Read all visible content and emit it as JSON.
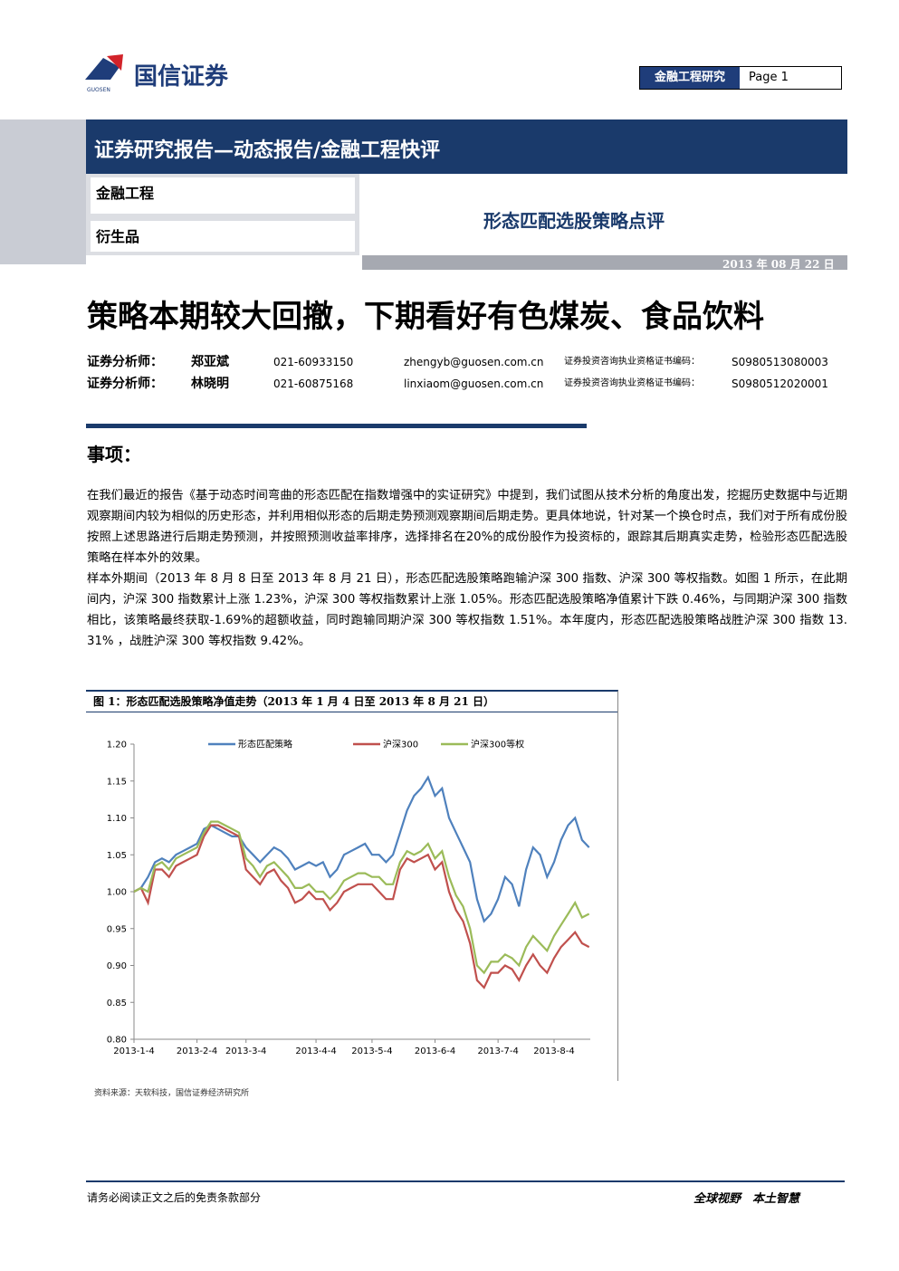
{
  "header": {
    "logo": "国信证券",
    "logo_en": "GUOSEN",
    "tag": "金融工程研究",
    "page_label": "Page",
    "page_number": "1"
  },
  "banner": {
    "title": "证券研究报告—动态报告/金融工程快评",
    "sector1": "金融工程",
    "sector2": "衍生品",
    "subtitle": "形态匹配选股策略点评",
    "date": "2013 年 08 月 22 日"
  },
  "headline": "策略本期较大回撤，下期看好有色煤炭、食品饮料",
  "analysts": [
    {
      "role": "证券分析师：",
      "name": "郑亚斌",
      "phone": "021-60933150",
      "email": "zhengyb@guosen.com.cn",
      "cert_label": "证券投资咨询执业资格证书编码：",
      "cert": "S0980513080003"
    },
    {
      "role": "证券分析师：",
      "name": "林晓明",
      "phone": "021-60875168",
      "email": "linxiaom@guosen.com.cn",
      "cert_label": "证券投资咨询执业资格证书编码：",
      "cert": "S0980512020001"
    }
  ],
  "section": "事项：",
  "paragraphs": [
    "在我们最近的报告《基于动态时间弯曲的形态匹配在指数增强中的实证研究》中提到，我们试图从技术分析的角度出发，挖掘历史数据中与近期观察期间内较为相似的历史形态，并利用相似形态的后期走势预测观察期间后期走势。更具体地说，针对某一个换仓时点，我们对于所有成份股按照上述思路进行后期走势预测，并按照预测收益率排序，选择排名在20%的成份股作为投资标的，跟踪其后期真实走势，检验形态匹配选股策略在样本外的效果。",
    "样本外期间（2013 年 8 月 8 日至 2013 年 8 月 21 日），形态匹配选股策略跑输沪深 300 指数、沪深 300 等权指数。如图 1 所示，在此期间内，沪深 300 指数累计上涨 1.23%，沪深 300 等权指数累计上涨 1.05%。形态匹配选股策略净值累计下跌 0.46%，与同期沪深 300 指数相比，该策略最终获取-1.69%的超额收益，同时跑输同期沪深 300 等权指数 1.51%。本年度内，形态匹配选股策略战胜沪深 300 指数 13. 31% ，战胜沪深 300 等权指数 9.42%。"
  ],
  "source": "资料来源：天软科技，国信证券经济研究所",
  "footer": {
    "left": "请务必阅读正文之后的免责条款部分",
    "right": "全球视野　本土智慧"
  },
  "chart_data": {
    "type": "line",
    "title": "图 1：形态匹配选股策略净值走势（2013 年 1 月 4 日至 2013 年 8 月 21 日）",
    "categories": [
      "2013-1-4",
      null,
      null,
      null,
      null,
      null,
      null,
      null,
      null,
      "2013-2-4",
      null,
      null,
      null,
      null,
      null,
      null,
      "2013-3-4",
      null,
      null,
      null,
      null,
      null,
      null,
      null,
      null,
      null,
      "2013-4-4",
      null,
      null,
      null,
      null,
      null,
      null,
      null,
      "2013-5-4",
      null,
      null,
      null,
      null,
      null,
      null,
      null,
      null,
      "2013-6-4",
      null,
      null,
      null,
      null,
      null,
      null,
      null,
      null,
      "2013-7-4",
      null,
      null,
      null,
      null,
      null,
      null,
      null,
      "2013-8-4",
      null,
      null,
      null,
      null,
      null
    ],
    "series": [
      {
        "name": "形态匹配策略",
        "color": "#4f81bd",
        "values": [
          1.0,
          1.005,
          1.02,
          1.04,
          1.045,
          1.04,
          1.05,
          1.055,
          1.06,
          1.065,
          1.085,
          1.09,
          1.085,
          1.08,
          1.075,
          1.075,
          1.06,
          1.05,
          1.04,
          1.05,
          1.06,
          1.055,
          1.045,
          1.03,
          1.035,
          1.04,
          1.035,
          1.04,
          1.02,
          1.03,
          1.05,
          1.055,
          1.06,
          1.065,
          1.05,
          1.05,
          1.04,
          1.05,
          1.08,
          1.11,
          1.13,
          1.14,
          1.155,
          1.13,
          1.14,
          1.1,
          1.08,
          1.06,
          1.04,
          0.99,
          0.96,
          0.97,
          0.99,
          1.02,
          1.01,
          0.98,
          1.03,
          1.06,
          1.05,
          1.02,
          1.04,
          1.07,
          1.09,
          1.1,
          1.07,
          1.06
        ]
      },
      {
        "name": "沪深300",
        "color": "#c0504d",
        "values": [
          1.0,
          1.005,
          0.985,
          1.03,
          1.03,
          1.02,
          1.035,
          1.04,
          1.045,
          1.05,
          1.075,
          1.09,
          1.09,
          1.085,
          1.08,
          1.075,
          1.03,
          1.02,
          1.01,
          1.025,
          1.03,
          1.015,
          1.005,
          0.985,
          0.99,
          1.0,
          0.99,
          0.99,
          0.975,
          0.985,
          1.0,
          1.005,
          1.01,
          1.01,
          1.01,
          1.0,
          0.99,
          0.99,
          1.03,
          1.045,
          1.04,
          1.045,
          1.05,
          1.03,
          1.04,
          1.0,
          0.975,
          0.96,
          0.93,
          0.88,
          0.87,
          0.89,
          0.89,
          0.9,
          0.895,
          0.88,
          0.9,
          0.915,
          0.9,
          0.89,
          0.91,
          0.925,
          0.935,
          0.945,
          0.93,
          0.925
        ]
      },
      {
        "name": "沪深300等权",
        "color": "#9bbb59",
        "values": [
          1.0,
          1.005,
          1.0,
          1.035,
          1.04,
          1.03,
          1.045,
          1.05,
          1.055,
          1.06,
          1.08,
          1.095,
          1.095,
          1.09,
          1.085,
          1.08,
          1.045,
          1.035,
          1.02,
          1.035,
          1.04,
          1.03,
          1.02,
          1.005,
          1.005,
          1.01,
          1.0,
          1.0,
          0.99,
          1.0,
          1.015,
          1.02,
          1.025,
          1.025,
          1.02,
          1.02,
          1.01,
          1.01,
          1.04,
          1.055,
          1.05,
          1.055,
          1.065,
          1.045,
          1.055,
          1.02,
          0.995,
          0.98,
          0.95,
          0.9,
          0.89,
          0.905,
          0.905,
          0.915,
          0.91,
          0.9,
          0.925,
          0.94,
          0.93,
          0.92,
          0.94,
          0.955,
          0.97,
          0.985,
          0.965,
          0.97
        ]
      }
    ],
    "ylim": [
      0.8,
      1.2
    ],
    "yticks": [
      {
        "value": 1.2,
        "label": "1.20"
      },
      1.15,
      {
        "value": 1.1,
        "label": "1.10"
      },
      1.05,
      {
        "value": 1.0,
        "label": "1.00"
      },
      0.95,
      {
        "value": 0.9,
        "label": "0.90"
      },
      0.85,
      {
        "value": 0.8,
        "label": "0.80"
      }
    ],
    "legend": "top"
  }
}
